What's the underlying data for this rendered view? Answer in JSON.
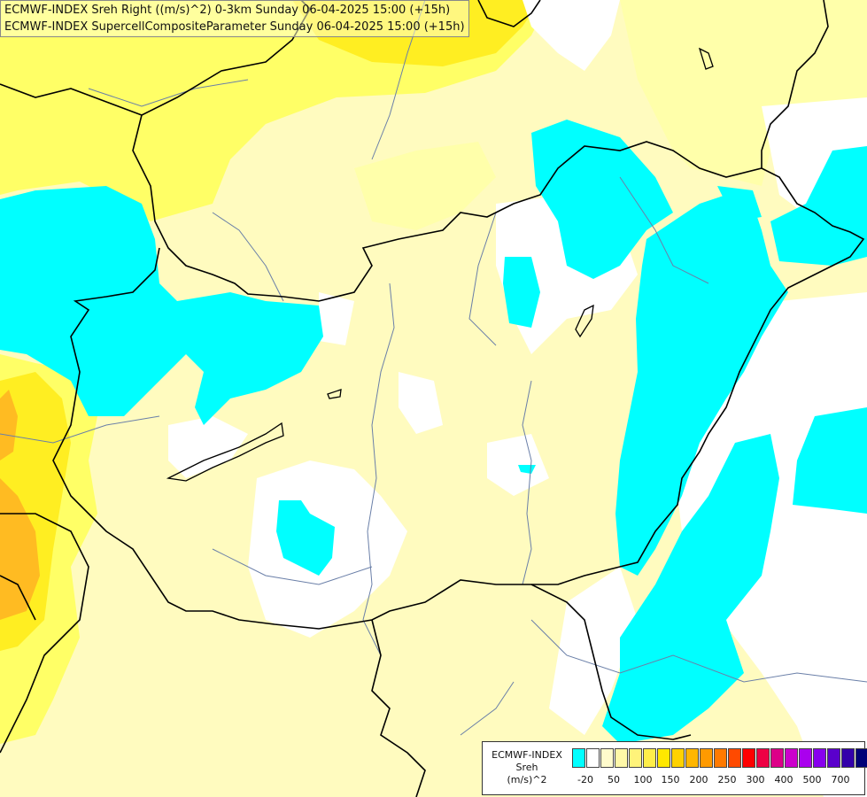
{
  "title": {
    "line1": "ECMWF-INDEX Sreh Right ((m/s)^2) 0-3km Sunday 06-04-2025 15:00 (+15h)",
    "line2": "ECMWF-INDEX SupercellCompositeParameter Sunday 06-04-2025 15:00 (+15h)"
  },
  "legend": {
    "title_lines": [
      "ECMWF-INDEX",
      "Sreh",
      "(m/s)^2"
    ],
    "colors": [
      "#00ffff",
      "#ffffff",
      "#fffbcc",
      "#fff8a8",
      "#fff37a",
      "#ffee4a",
      "#ffe800",
      "#ffd200",
      "#ffb600",
      "#ff9a00",
      "#ff7a00",
      "#ff4a00",
      "#ff0000",
      "#ee0044",
      "#dd0088",
      "#cc00cc",
      "#aa00ee",
      "#8800ee",
      "#5a00cc",
      "#3300aa",
      "#000077"
    ],
    "tick_labels": [
      "-20",
      "50",
      "100",
      "150",
      "200",
      "250",
      "300",
      "400",
      "500",
      "700"
    ]
  },
  "map_colors": {
    "low_cyan": "#00ffff",
    "white_band": "#ffffff",
    "pale_yellow": "#fffbbf",
    "yellow": "#ffff55",
    "bright_yellow": "#ffee00",
    "orange": "#ffbb22",
    "borders": "#000000",
    "rivers": "#6a7fa8"
  }
}
